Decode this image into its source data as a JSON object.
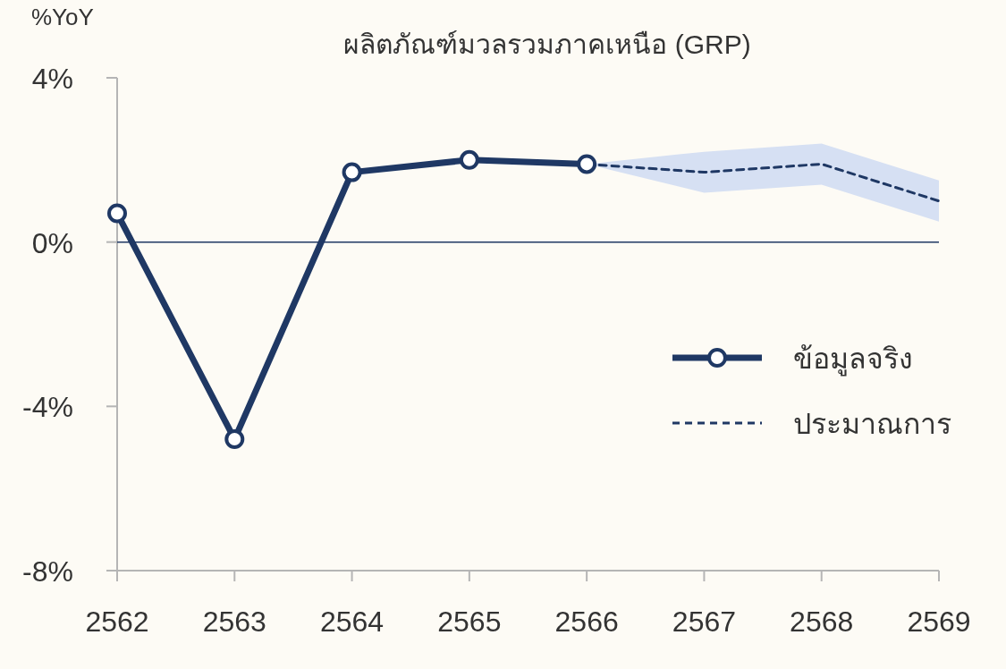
{
  "chart_data": {
    "type": "line",
    "title": "ผลิตภัณฑ์มวลรวมภาคเหนือ (GRP)",
    "ylabel": "%YoY",
    "xlim": [
      2562,
      2569
    ],
    "xticks": [
      2562,
      2563,
      2564,
      2565,
      2566,
      2567,
      2568,
      2569
    ],
    "ylim": [
      -8,
      4
    ],
    "yticks": [
      {
        "value": 4,
        "label": "4%"
      },
      {
        "value": 0,
        "label": "0%"
      },
      {
        "value": -4,
        "label": "-4%"
      },
      {
        "value": -8,
        "label": "-8%"
      }
    ],
    "grid": false,
    "legend": "right",
    "ref_lines": [
      {
        "axis": "y",
        "value": 0,
        "color": "#1f3864"
      }
    ],
    "series": [
      {
        "name": "ข้อมูลจริง",
        "color": "#1f3864",
        "marker": "circle",
        "line_style": "solid",
        "x": [
          2562,
          2563,
          2564,
          2565,
          2566
        ],
        "values": [
          0.7,
          -4.8,
          1.7,
          2.0,
          1.9
        ]
      },
      {
        "name": "ประมาณการ",
        "color": "#1f3864",
        "marker": "none",
        "line_style": "dashed",
        "x": [
          2566,
          2567,
          2568,
          2569
        ],
        "values": [
          1.9,
          1.7,
          1.9,
          1.0
        ],
        "lower": [
          1.9,
          1.2,
          1.4,
          0.5
        ],
        "upper": [
          1.9,
          2.2,
          2.4,
          1.5
        ]
      }
    ]
  }
}
